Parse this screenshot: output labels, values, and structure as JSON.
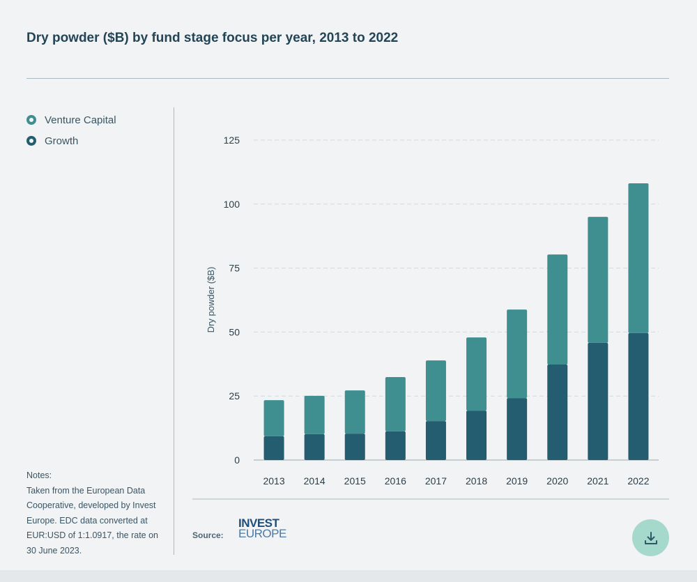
{
  "title": "Dry powder ($B) by fund stage focus per year, 2013 to 2022",
  "legend": [
    {
      "label": "Venture Capital",
      "color": "#3f8f91"
    },
    {
      "label": "Growth",
      "color": "#245d70"
    }
  ],
  "notes": {
    "heading": "Notes:",
    "text": "Taken from the European Data Cooperative, developed by Invest Europe. EDC data converted at EUR:USD of 1:1.0917, the rate on 30 June 2023."
  },
  "source": {
    "label": "Source:",
    "logo_line1": "INVEST",
    "logo_line2": "EUROPE"
  },
  "download_icon": "download-icon",
  "chart_data": {
    "type": "bar",
    "stacked": true,
    "categories": [
      "2013",
      "2014",
      "2015",
      "2016",
      "2017",
      "2018",
      "2019",
      "2020",
      "2021",
      "2022"
    ],
    "series": [
      {
        "name": "Growth",
        "color": "#245d70",
        "values": [
          9.3,
          10.1,
          10.3,
          11.2,
          15.2,
          19.3,
          24.2,
          37.3,
          45.8,
          49.6
        ]
      },
      {
        "name": "Venture Capital",
        "color": "#3f8f91",
        "values": [
          14.1,
          15.0,
          16.9,
          21.2,
          23.7,
          28.6,
          34.6,
          43.0,
          49.2,
          58.5
        ]
      }
    ],
    "ylabel": "Dry powder ($B)",
    "xlabel": "",
    "ylim": [
      0,
      125
    ],
    "yticks": [
      0,
      25,
      50,
      75,
      100,
      125
    ],
    "grid": true
  }
}
